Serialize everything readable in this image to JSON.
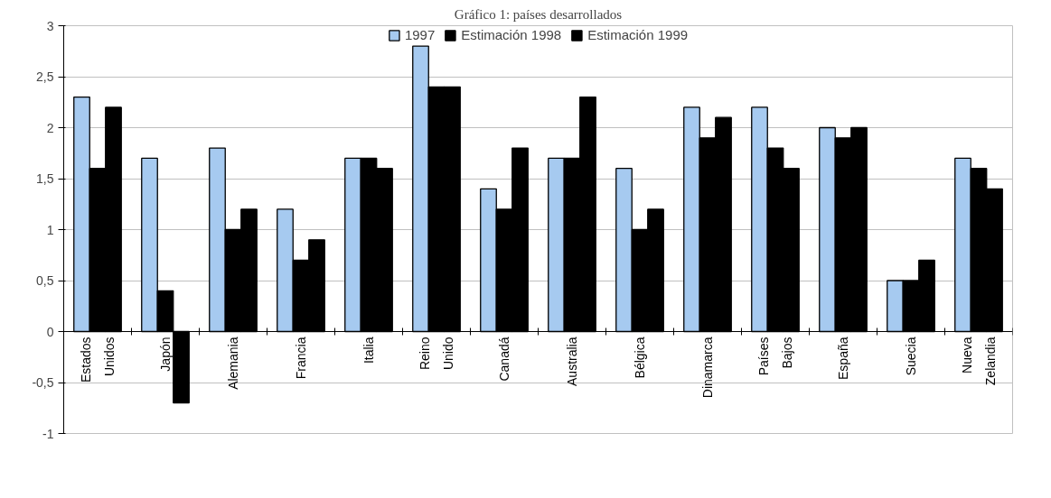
{
  "chart_data": {
    "type": "bar",
    "title": "Gráfico 1: países desarrollados",
    "categories": [
      "Estados Unidos",
      "Japón",
      "Alemania",
      "Francia",
      "Italia",
      "Reino Unido",
      "Canadá",
      "Australia",
      "Bélgica",
      "Dinamarca",
      "Países Bajos",
      "España",
      "Suecia",
      "Nueva Zelandia"
    ],
    "series": [
      {
        "name": "1997",
        "color": "#a6caf0",
        "values": [
          2.3,
          1.7,
          1.8,
          1.2,
          1.7,
          2.8,
          1.4,
          1.7,
          1.6,
          2.2,
          2.2,
          2.0,
          0.5,
          1.7
        ]
      },
      {
        "name": "Estimación 1998",
        "color": "#000000",
        "values": [
          1.6,
          0.4,
          1.0,
          0.7,
          1.7,
          2.4,
          1.2,
          1.7,
          1.0,
          1.9,
          1.8,
          1.9,
          0.5,
          1.6
        ]
      },
      {
        "name": "Estimación 1999",
        "color": "#000000",
        "values": [
          2.2,
          -0.7,
          1.2,
          0.9,
          1.6,
          2.4,
          1.8,
          2.3,
          1.2,
          2.1,
          1.6,
          2.0,
          0.7,
          1.4
        ]
      }
    ],
    "ylim": [
      -1,
      3
    ],
    "yticks": [
      {
        "value": -1,
        "label": "-1"
      },
      {
        "value": -0.5,
        "label": "-0,5"
      },
      {
        "value": 0,
        "label": "0"
      },
      {
        "value": 0.5,
        "label": "0,5"
      },
      {
        "value": 1,
        "label": "1"
      },
      {
        "value": 1.5,
        "label": "1,5"
      },
      {
        "value": 2,
        "label": "2"
      },
      {
        "value": 2.5,
        "label": "2,5"
      },
      {
        "value": 3,
        "label": "3"
      }
    ],
    "grid": "y",
    "legend": "top"
  }
}
